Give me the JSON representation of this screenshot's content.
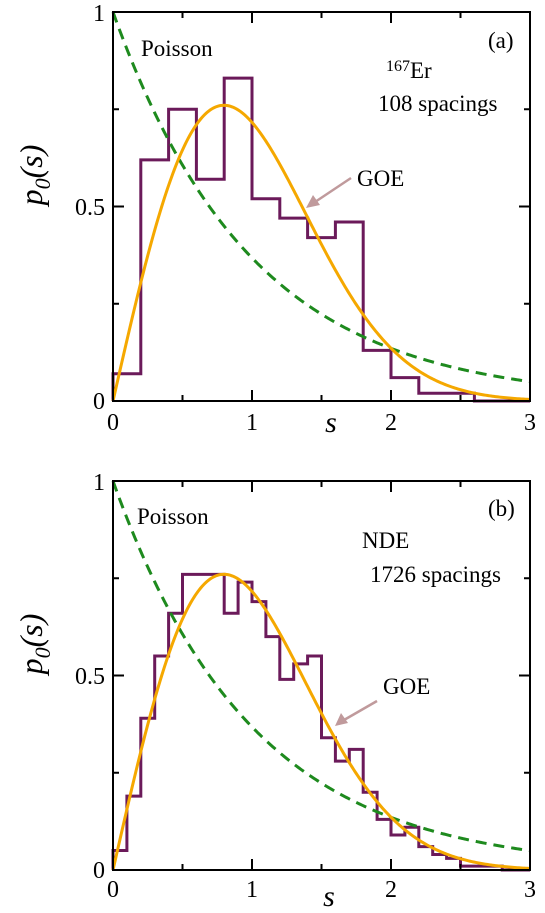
{
  "chart_data": [
    {
      "id": "a",
      "type": "bar",
      "panel_label": "(a)",
      "xlabel": "s",
      "ylabel_main": "p",
      "ylabel_sub": "0",
      "ylabel_arg": "(s)",
      "xlim": [
        0,
        3
      ],
      "ylim": [
        0,
        1
      ],
      "xticks": [
        "0",
        "1",
        "2",
        "3"
      ],
      "yticks": [
        "0",
        "0.5",
        "1"
      ],
      "colors": {
        "histogram": "#6b1a5a",
        "goe": "#f5a800",
        "poisson": "#1e8a1e",
        "arrow": "#c09a9c"
      },
      "annotations": {
        "poisson": "Poisson",
        "isotope_mass": "167",
        "isotope_sym": "Er",
        "spacings": "108 spacings",
        "goe": "GOE"
      },
      "histogram": {
        "bin_width": 0.2,
        "edges_start": 0,
        "values": [
          0.07,
          0.62,
          0.75,
          0.57,
          0.83,
          0.52,
          0.47,
          0.42,
          0.46,
          0.13,
          0.06,
          0.02,
          0.02,
          0.0,
          0.0
        ]
      },
      "curves": [
        {
          "name": "GOE",
          "function": "(pi/2) s exp(-pi s^2/4)"
        },
        {
          "name": "Poisson",
          "function": "exp(-s)",
          "style": "dashed"
        }
      ]
    },
    {
      "id": "b",
      "type": "bar",
      "panel_label": "(b)",
      "xlabel": "s",
      "ylabel_main": "p",
      "ylabel_sub": "0",
      "ylabel_arg": "(s)",
      "xlim": [
        0,
        3
      ],
      "ylim": [
        0,
        1
      ],
      "xticks": [
        "0",
        "1",
        "2",
        "3"
      ],
      "yticks": [
        "0",
        "0.5",
        "1"
      ],
      "colors": {
        "histogram": "#6b1a5a",
        "goe": "#f5a800",
        "poisson": "#1e8a1e",
        "arrow": "#c09a9c"
      },
      "annotations": {
        "poisson": "Poisson",
        "nde": "NDE",
        "spacings": "1726 spacings",
        "goe": "GOE"
      },
      "histogram": {
        "bin_width": 0.1,
        "edges_start": 0,
        "values": [
          0.05,
          0.19,
          0.39,
          0.55,
          0.66,
          0.76,
          0.76,
          0.76,
          0.66,
          0.74,
          0.69,
          0.6,
          0.49,
          0.53,
          0.55,
          0.34,
          0.28,
          0.31,
          0.2,
          0.13,
          0.09,
          0.11,
          0.06,
          0.04,
          0.03,
          0.01,
          0.01,
          0.01,
          0.0,
          0.0
        ]
      },
      "curves": [
        {
          "name": "GOE",
          "function": "(pi/2) s exp(-pi s^2/4)"
        },
        {
          "name": "Poisson",
          "function": "exp(-s)",
          "style": "dashed"
        }
      ]
    }
  ]
}
